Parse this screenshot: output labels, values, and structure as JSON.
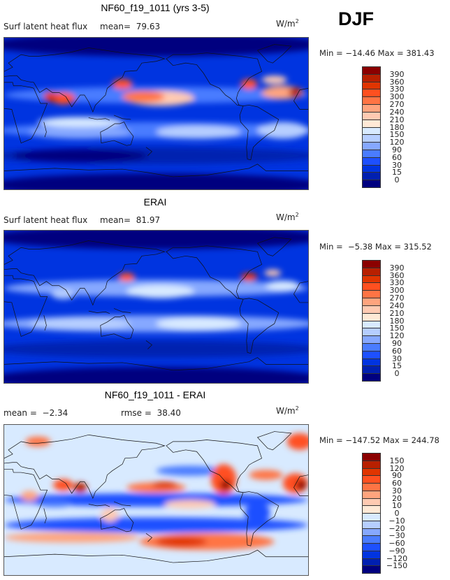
{
  "season": "DJF",
  "chart_data": [
    {
      "type": "heatmap",
      "title": "NF60_f19_1011 (yrs 3-5)",
      "variable": "Surf latent heat flux",
      "stat1_label": "mean=",
      "stat1_value": "79.63",
      "units_base": "W/m",
      "units_exp": "2",
      "min_max": "Min = −14.46 Max = 381.43",
      "levels": [
        "390",
        "360",
        "330",
        "300",
        "270",
        "240",
        "210",
        "180",
        "150",
        "120",
        "90",
        "60",
        "30",
        "15",
        "0"
      ],
      "colors": [
        "#8b0000",
        "#b82000",
        "#e03500",
        "#ff5020",
        "#ff7444",
        "#ffa47e",
        "#ffcab2",
        "#ffe9d6",
        "#d8eaff",
        "#b6ceff",
        "#86a8ff",
        "#4a7cff",
        "#1e50ff",
        "#0034e0",
        "#0020b0",
        "#00007f"
      ]
    },
    {
      "type": "heatmap",
      "title": "ERAI",
      "variable": "Surf latent heat flux",
      "stat1_label": "mean=",
      "stat1_value": "81.97",
      "units_base": "W/m",
      "units_exp": "2",
      "min_max": "Min =  −5.38 Max = 315.52",
      "levels": [
        "390",
        "360",
        "330",
        "300",
        "270",
        "240",
        "210",
        "180",
        "150",
        "120",
        "90",
        "60",
        "30",
        "15",
        "0"
      ],
      "colors": [
        "#8b0000",
        "#b82000",
        "#e03500",
        "#ff5020",
        "#ff7444",
        "#ffa47e",
        "#ffcab2",
        "#ffe9d6",
        "#d8eaff",
        "#b6ceff",
        "#86a8ff",
        "#4a7cff",
        "#1e50ff",
        "#0034e0",
        "#0020b0",
        "#00007f"
      ]
    },
    {
      "type": "heatmap",
      "title": "NF60_f19_1011 - ERAI",
      "stat1_label": "mean =",
      "stat1_value": "−2.34",
      "stat2_label": "rmse =",
      "stat2_value": "38.40",
      "units_base": "W/m",
      "units_exp": "2",
      "min_max": "Min = −147.52 Max = 244.78",
      "levels": [
        "150",
        "120",
        "90",
        "60",
        "30",
        "20",
        "10",
        "0",
        "−10",
        "−20",
        "−30",
        "−60",
        "−90",
        "−120",
        "−150"
      ],
      "colors": [
        "#8b0000",
        "#b82000",
        "#e03500",
        "#ff5020",
        "#ff7444",
        "#ffa47e",
        "#ffcab2",
        "#ffe9d6",
        "#d8eaff",
        "#b6ceff",
        "#86a8ff",
        "#4a7cff",
        "#1e50ff",
        "#0034e0",
        "#0020b0",
        "#00007f"
      ]
    }
  ]
}
